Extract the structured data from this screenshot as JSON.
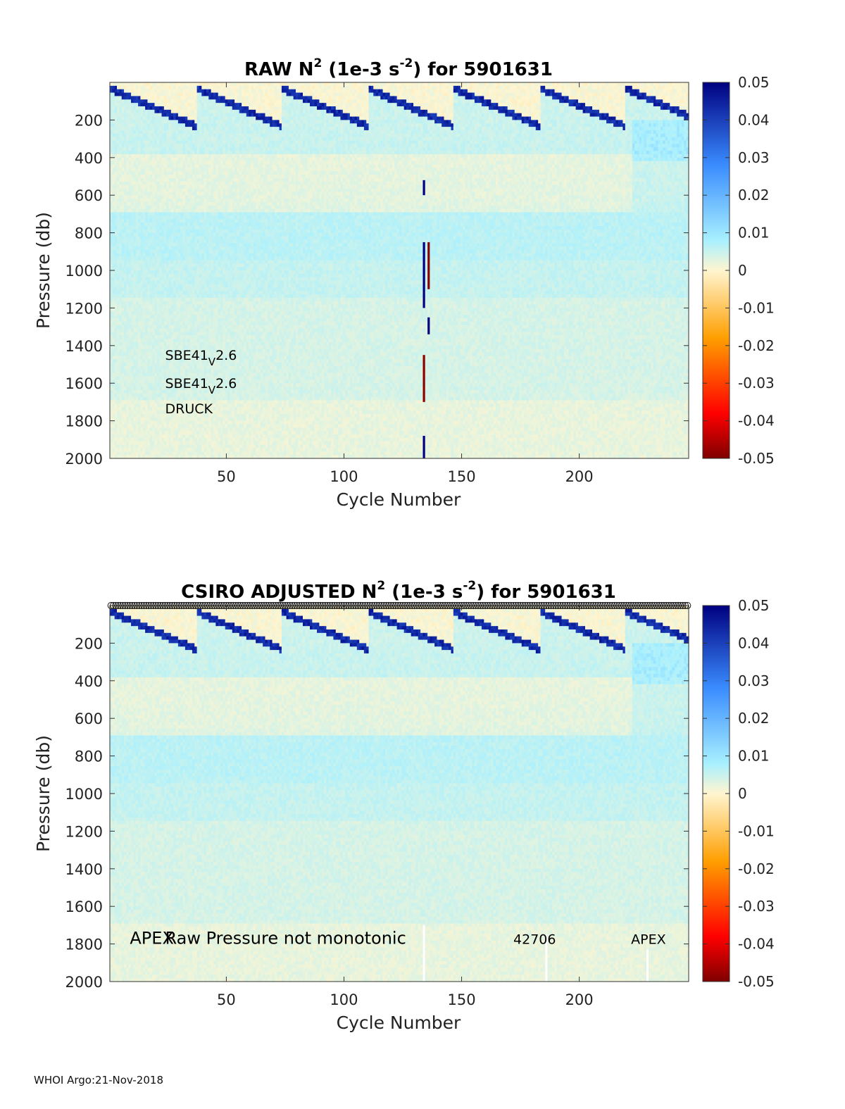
{
  "footer": "WHOI Argo:21-Nov-2018",
  "chart_data": [
    {
      "type": "heatmap",
      "title_main": "RAW N",
      "title_sup1": "2",
      "title_mid": " (1e-3 s",
      "title_sup2": "-2",
      "title_end": ") for 5901631",
      "xlabel": "Cycle Number",
      "ylabel": "Pressure (db)",
      "xlim": [
        1,
        246
      ],
      "ylim": [
        0,
        2000
      ],
      "y_reversed": true,
      "xticks": [
        50,
        100,
        150,
        200
      ],
      "yticks": [
        200,
        400,
        600,
        800,
        1000,
        1200,
        1400,
        1600,
        1800,
        2000
      ],
      "annotations": [
        {
          "base": "SBE41",
          "sub": "V",
          "rest": "2.6",
          "x": 24,
          "y": 1475
        },
        {
          "base": "SBE41",
          "sub": "V",
          "rest": "2.6",
          "x": 24,
          "y": 1625
        },
        {
          "base": "DRUCK",
          "sub": "",
          "rest": "",
          "x": 24,
          "y": 1760
        }
      ],
      "colorbar": {
        "clim": [
          -0.05,
          0.05
        ],
        "ticks": [
          "0.05",
          "0.04",
          "0.03",
          "0.02",
          "0.01",
          "0",
          "-0.01",
          "-0.02",
          "-0.03",
          "-0.04",
          "-0.05"
        ],
        "colormap": [
          "#7f0000",
          "#ff0000",
          "#ff9f00",
          "#fff5d0",
          "#a8f0ff",
          "#3a8cff",
          "#000080"
        ]
      },
      "anomalies": [
        {
          "cycle": 134,
          "p_start": 520,
          "p_end": 600,
          "color": "#000080"
        },
        {
          "cycle": 134,
          "p_start": 850,
          "p_end": 1200,
          "color": "#000080"
        },
        {
          "cycle": 136,
          "p_start": 850,
          "p_end": 1100,
          "color": "#8b0000"
        },
        {
          "cycle": 136,
          "p_start": 1250,
          "p_end": 1340,
          "color": "#000080"
        },
        {
          "cycle": 134,
          "p_start": 1450,
          "p_end": 1700,
          "color": "#8b0000"
        },
        {
          "cycle": 134,
          "p_start": 1880,
          "p_end": 2000,
          "color": "#000080"
        }
      ]
    },
    {
      "type": "heatmap",
      "title_main": "CSIRO  ADJUSTED N",
      "title_sup1": "2",
      "title_mid": " (1e-3 s",
      "title_sup2": "-2",
      "title_end": ") for 5901631",
      "xlabel": "Cycle Number",
      "ylabel": "Pressure (db)",
      "xlim": [
        1,
        246
      ],
      "ylim": [
        0,
        2000
      ],
      "y_reversed": true,
      "xticks": [
        50,
        100,
        150,
        200
      ],
      "yticks": [
        200,
        400,
        600,
        800,
        1000,
        1200,
        1400,
        1600,
        1800,
        2000
      ],
      "circle_markers_at_top": true,
      "annotations": [
        {
          "text": "APEX",
          "x": 9,
          "y": 1800,
          "size": "large"
        },
        {
          "text": "Raw Pressure not monotonic",
          "x": 24,
          "y": 1800,
          "size": "large"
        },
        {
          "text": "42706",
          "x": 172,
          "y": 1800,
          "size": "small"
        },
        {
          "text": "APEX",
          "x": 222,
          "y": 1800,
          "size": "small"
        }
      ],
      "colorbar": {
        "clim": [
          -0.05,
          0.05
        ],
        "ticks": [
          "0.05",
          "0.04",
          "0.03",
          "0.02",
          "0.01",
          "0",
          "-0.01",
          "-0.02",
          "-0.03",
          "-0.04",
          "-0.05"
        ],
        "colormap": [
          "#7f0000",
          "#ff0000",
          "#ff9f00",
          "#fff5d0",
          "#a8f0ff",
          "#3a8cff",
          "#000080"
        ]
      },
      "white_gaps": [
        {
          "cycle": 134,
          "p_start": 1700,
          "p_end": 2000
        },
        {
          "cycle": 186,
          "p_start": 1750,
          "p_end": 2000
        },
        {
          "cycle": 229,
          "p_start": 1830,
          "p_end": 2000
        }
      ]
    }
  ]
}
